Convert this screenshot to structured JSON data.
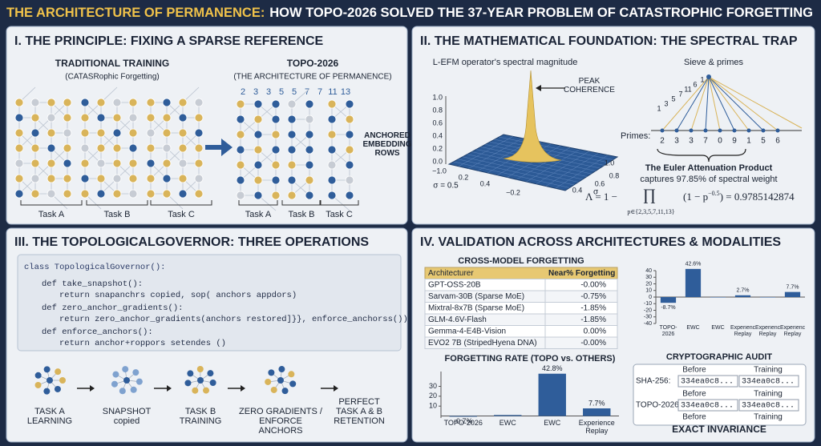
{
  "header": {
    "title_highlight": "THE ARCHITECTURE OF PERMANENCE:",
    "title_rest": "HOW TOPO-2026 SOLVED THE 37-YEAR PROBLEM OF CATASTROPHIC FORGETTING"
  },
  "panel1": {
    "heading": "I. THE PRINCIPLE: FIXING A SPARSE REFERENCE",
    "left_title": "TRADITIONAL TRAINING",
    "left_subtitle": "(CATASRophic Forgetting)",
    "right_title": "TOPO-2026",
    "right_subtitle": "(THE ARCHITECTURE OF PERMANENCE)",
    "primes": [
      "2",
      "3",
      "3",
      "5",
      "5",
      "7",
      "7",
      "11",
      "13"
    ],
    "anchor_label": "ANCHORED EMBEDDING ROWS",
    "left_tasks": [
      "Task A",
      "Task B",
      "Task C"
    ],
    "right_tasks": [
      "Task A",
      "Task B",
      "Task C"
    ]
  },
  "panel2": {
    "heading": "II. THE MATHEMATICAL FOUNDATION: THE SPECTRAL TRAP",
    "plot_title": "L-EFM operator's spectral magnitude",
    "peak_label": "PEAK COHERENCE",
    "z_labels": [
      "1.0",
      "0.8",
      "0.6",
      "0.4",
      "0.2",
      "0.0"
    ],
    "front_axis_labels": [
      "−1.0",
      "0.2",
      "0.4",
      "−0.2"
    ],
    "front_axis_name": "σ = 0.5",
    "side_axis_labels": [
      "1.0",
      "0.8",
      "0.6",
      "0.4"
    ],
    "side_axis_name": "σ",
    "sieve_title": "Sieve & primes",
    "fan_numbers": [
      "1",
      "3",
      "5",
      "7",
      "11",
      "6",
      "1"
    ],
    "primes_label": "Primes:",
    "primes": [
      "2",
      "3",
      "3",
      "7",
      "0",
      "9",
      "1",
      "5",
      "6"
    ],
    "euler_title": "The Euler Attenuation Product",
    "euler_caption": "captures 97.85% of spectral weight",
    "formula_left": "Λ = 1 −",
    "formula_prod": "∏",
    "formula_sub": "p∈{2,3,5,7,11,13}",
    "formula_base": "(1 − p",
    "formula_exp": "−0.5",
    "formula_right": ") = 0.9785142874"
  },
  "panel3": {
    "heading": "III. THE TOPOLOGICALGOVERNOR: THREE OPERATIONS",
    "code": [
      "class TopologicalGovernor():",
      "def take_snapshot():",
      "return snapanchrs copied, sop( anchors appdors)",
      "def zero_anchor_gradients():",
      "return zero_anchor_gradients(anchors restored]}}, enforce_anchorss())",
      "def enforce_anchors():",
      "return anchor+roppors setendes ()"
    ],
    "steps": [
      "TASK A LEARNING",
      "SNAPSHOT copied",
      "TASK B TRAINING",
      "ZERO GRADIENTS / ENFORCE ANCHORS",
      "PERFECT TASK A & B RETENTION"
    ]
  },
  "panel4": {
    "heading": "IV. VALIDATION ACROSS ARCHITECTURES & MODALITIES",
    "table": {
      "title": "CROSS-MODEL FORGETTING",
      "header": [
        "Architecturer",
        "Near% Forgetting"
      ],
      "rows": [
        [
          "GPT-OSS-20B",
          "-0.00%"
        ],
        [
          "Sarvam-30B (Sparse MoE)",
          "-0.75%"
        ],
        [
          "Mixtral-8x7B (Sparse MoE)",
          "-1.85%"
        ],
        [
          "GLM-4.6V-Flash",
          "-1.85%"
        ],
        [
          "Gemma-4-E4B-Vision",
          "0.00%"
        ],
        [
          "EVO2 7B (StripedHyena DNA)",
          "-0.00%"
        ]
      ]
    },
    "bar_chart": {
      "type": "bar",
      "categories": [
        "TOPO-2026",
        "EWC",
        "EWC",
        "Experience Replay",
        "Experience Replay",
        "Experience Replay"
      ],
      "values": [
        -8.7,
        42.6,
        0,
        2.7,
        0,
        7.7
      ],
      "value_labels": [
        "-8.7%",
        "42.6%",
        null,
        "2.7%",
        null,
        "7.7%"
      ],
      "color": "#2f5d9a",
      "ylim": [
        -40,
        40
      ],
      "yticks": [
        40,
        30,
        20,
        10,
        0,
        -10,
        -20,
        -30,
        -40
      ]
    },
    "rate_chart": {
      "type": "bar",
      "title": "FORGETTING RATE (TOPO vs. OTHERS)",
      "categories": [
        "TOPO-2026",
        "EWC",
        "EWC",
        "Experience Replay"
      ],
      "values": [
        -0.7,
        1,
        42.8,
        7.7
      ],
      "value_labels": [
        "-0.7%",
        null,
        "42.8%",
        "7.7%"
      ],
      "color": "#2f5d9a",
      "ylim": [
        -2,
        45
      ],
      "yticks": [
        10,
        20,
        30
      ]
    },
    "audit": {
      "title": "CRYPTOGRAPHIC AUDIT",
      "col_headers": [
        "Before",
        "Training"
      ],
      "rows": [
        {
          "label": "SHA-256:",
          "before": "334ea0c8...",
          "training": "334ea0c8..."
        },
        {
          "label": "TOPO-2026",
          "before": "334ea0c8...",
          "training": "334ea0c8..."
        }
      ],
      "footer": "EXACT INVARIANCE"
    }
  }
}
